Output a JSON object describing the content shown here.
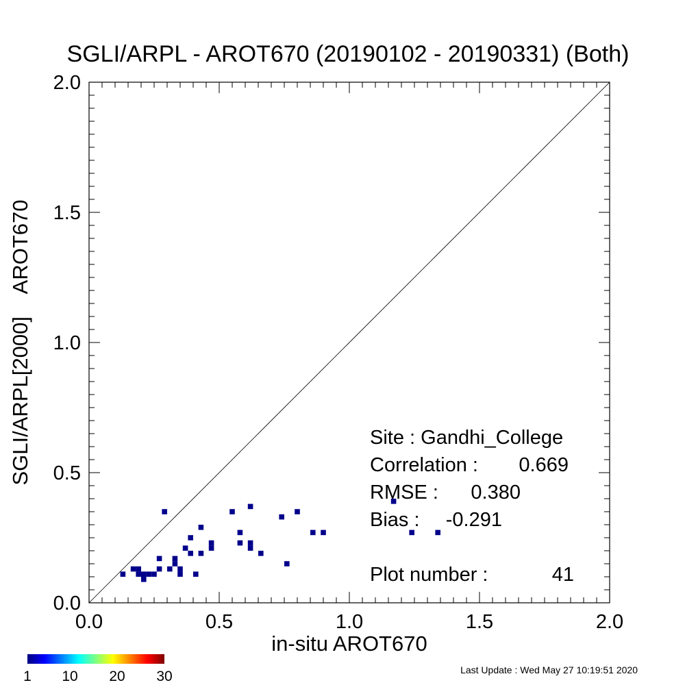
{
  "chart_data": {
    "type": "scatter",
    "title": "SGLI/ARPL - AROT670 (20190102 - 20190331) (Both)",
    "xlabel": "in-situ AROT670",
    "ylabel": "SGLI/ARPL[2000]    AROT670",
    "xlim": [
      0.0,
      2.0
    ],
    "ylim": [
      0.0,
      2.0
    ],
    "x_ticks": [
      "0.0",
      "0.5",
      "1.0",
      "1.5",
      "2.0"
    ],
    "y_ticks": [
      "0.0",
      "0.5",
      "1.0",
      "1.5",
      "2.0"
    ],
    "one_to_one_line": true,
    "grid": false,
    "point_color": "#00008b",
    "points": [
      {
        "x": 0.13,
        "y": 0.11
      },
      {
        "x": 0.17,
        "y": 0.13
      },
      {
        "x": 0.19,
        "y": 0.13
      },
      {
        "x": 0.19,
        "y": 0.11
      },
      {
        "x": 0.21,
        "y": 0.11
      },
      {
        "x": 0.21,
        "y": 0.09
      },
      {
        "x": 0.23,
        "y": 0.11
      },
      {
        "x": 0.25,
        "y": 0.11
      },
      {
        "x": 0.27,
        "y": 0.13
      },
      {
        "x": 0.27,
        "y": 0.17
      },
      {
        "x": 0.29,
        "y": 0.35
      },
      {
        "x": 0.31,
        "y": 0.13
      },
      {
        "x": 0.33,
        "y": 0.15
      },
      {
        "x": 0.33,
        "y": 0.17
      },
      {
        "x": 0.35,
        "y": 0.11
      },
      {
        "x": 0.35,
        "y": 0.13
      },
      {
        "x": 0.37,
        "y": 0.21
      },
      {
        "x": 0.39,
        "y": 0.19
      },
      {
        "x": 0.39,
        "y": 0.25
      },
      {
        "x": 0.41,
        "y": 0.11
      },
      {
        "x": 0.43,
        "y": 0.19
      },
      {
        "x": 0.43,
        "y": 0.29
      },
      {
        "x": 0.47,
        "y": 0.21
      },
      {
        "x": 0.47,
        "y": 0.23
      },
      {
        "x": 0.55,
        "y": 0.35
      },
      {
        "x": 0.58,
        "y": 0.27
      },
      {
        "x": 0.58,
        "y": 0.23
      },
      {
        "x": 0.62,
        "y": 0.37
      },
      {
        "x": 0.62,
        "y": 0.23
      },
      {
        "x": 0.62,
        "y": 0.21
      },
      {
        "x": 0.66,
        "y": 0.19
      },
      {
        "x": 0.74,
        "y": 0.33
      },
      {
        "x": 0.76,
        "y": 0.15
      },
      {
        "x": 0.8,
        "y": 0.35
      },
      {
        "x": 0.86,
        "y": 0.27
      },
      {
        "x": 0.9,
        "y": 0.27
      },
      {
        "x": 1.17,
        "y": 0.39
      },
      {
        "x": 1.24,
        "y": 0.27
      },
      {
        "x": 1.34,
        "y": 0.27
      }
    ],
    "stats": {
      "site": "Site : Gandhi_College",
      "correlation_label": "Correlation :",
      "correlation_value": "0.669",
      "rmse_label": "RMSE :",
      "rmse_value": "0.380",
      "bias_label": "Bias :",
      "bias_value": "-0.291",
      "plot_number_label": "Plot number :",
      "plot_number_value": "41"
    },
    "colorbar": {
      "ticks": [
        "1",
        "10",
        "20",
        "30"
      ],
      "colors": [
        "#00007f",
        "#0000ff",
        "#0080ff",
        "#00ffff",
        "#80ff80",
        "#ffff00",
        "#ff8000",
        "#ff0000",
        "#7f0000"
      ]
    },
    "last_update": "Last Update : Wed May 27 10:19:51 2020"
  }
}
